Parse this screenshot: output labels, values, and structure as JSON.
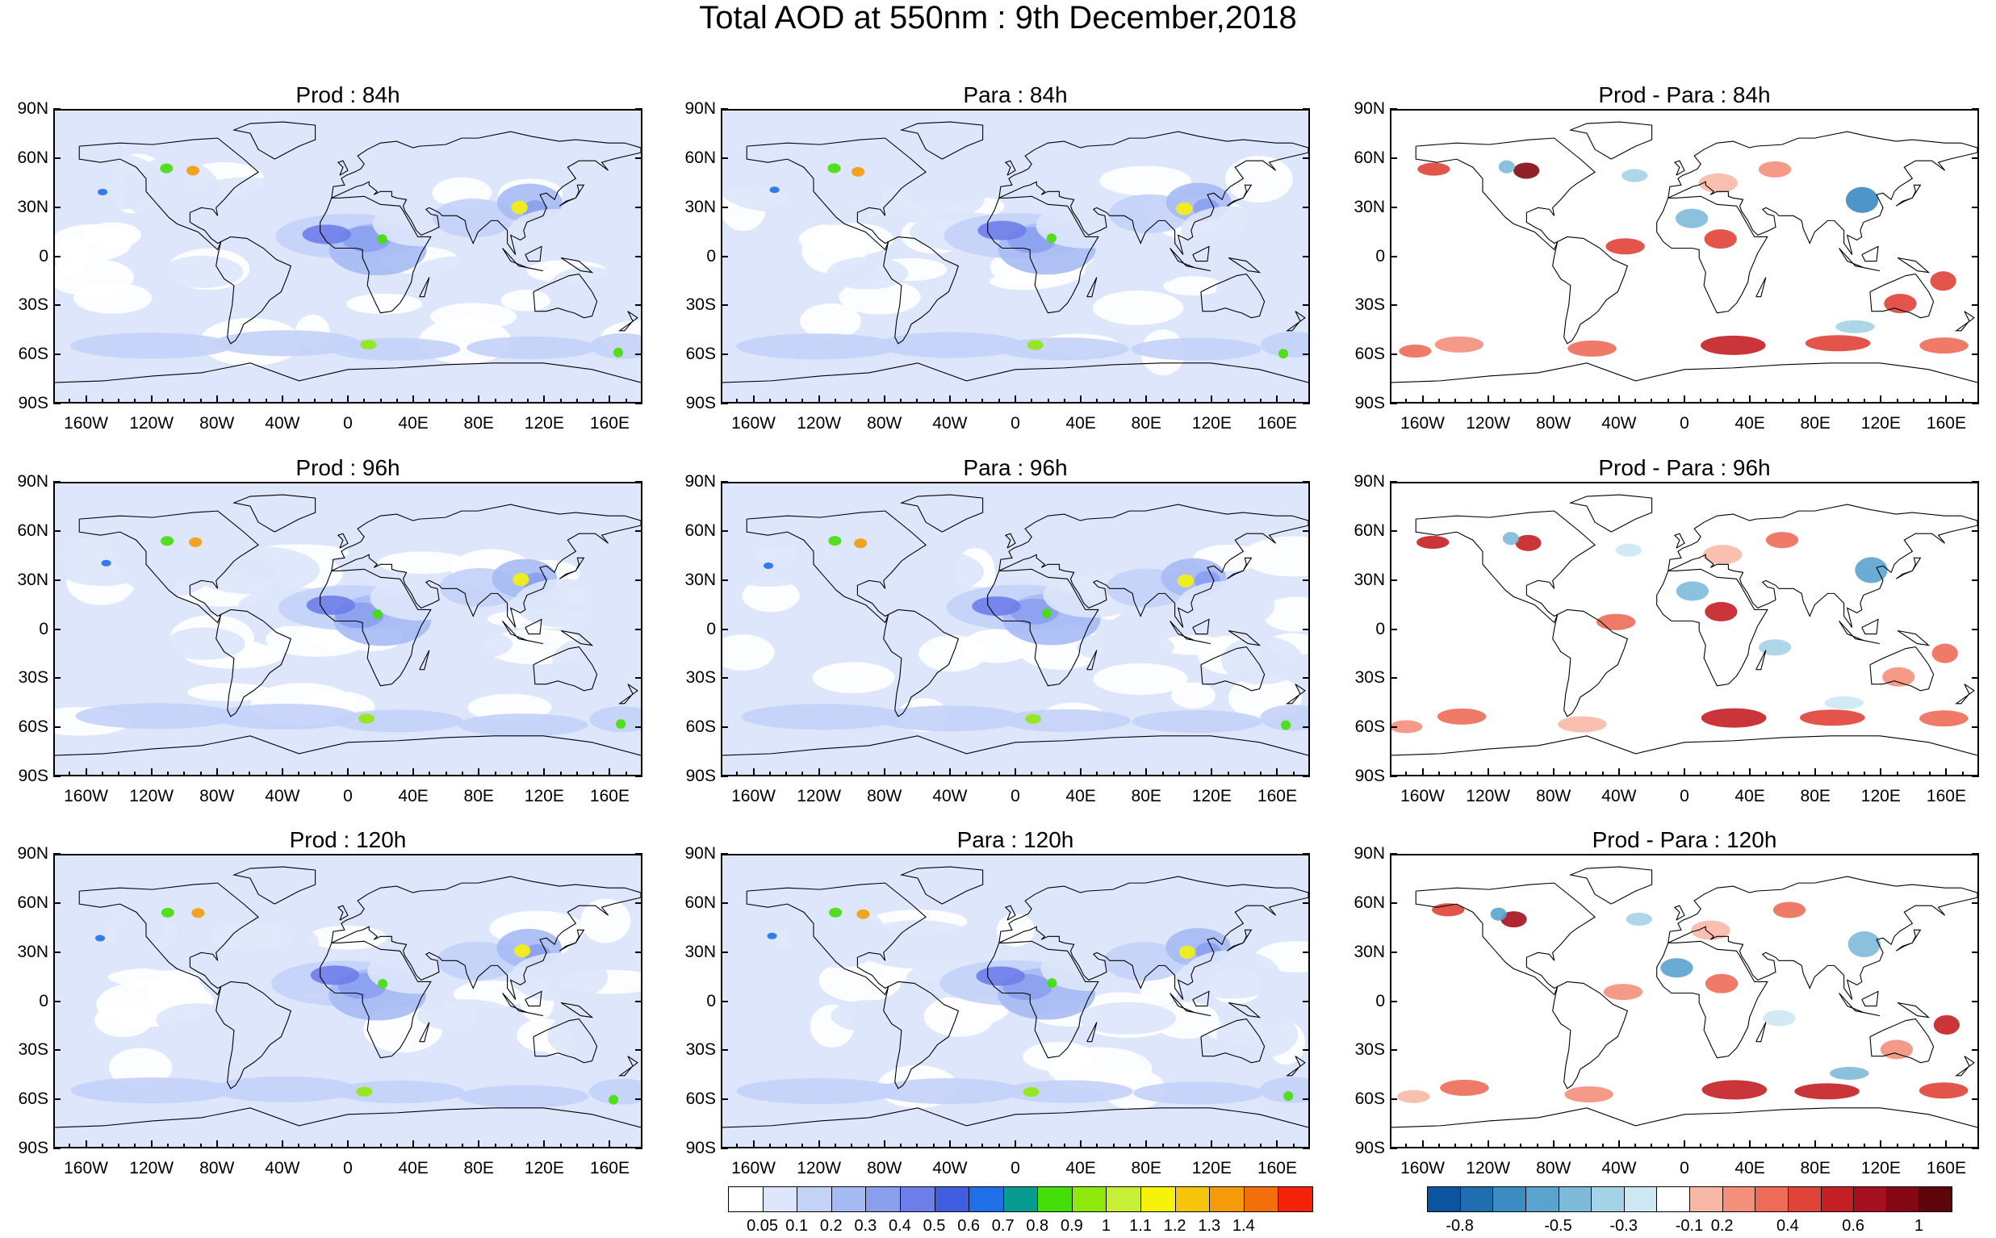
{
  "title": "Total AOD at 550nm : 9th December,2018",
  "lat_labels": [
    "90N",
    "60N",
    "30N",
    "0",
    "30S",
    "60S",
    "90S"
  ],
  "lon_labels": [
    "160W",
    "120W",
    "80W",
    "40W",
    "0",
    "40E",
    "80E",
    "120E",
    "160E"
  ],
  "panels": [
    {
      "title": "Prod : 84h",
      "kind": "aod"
    },
    {
      "title": "Para : 84h",
      "kind": "aod"
    },
    {
      "title": "Prod - Para : 84h",
      "kind": "diff"
    },
    {
      "title": "Prod : 96h",
      "kind": "aod"
    },
    {
      "title": "Para : 96h",
      "kind": "aod"
    },
    {
      "title": "Prod - Para : 96h",
      "kind": "diff"
    },
    {
      "title": "Prod : 120h",
      "kind": "aod"
    },
    {
      "title": "Para : 120h",
      "kind": "aod"
    },
    {
      "title": "Prod - Para : 120h",
      "kind": "diff"
    }
  ],
  "aod_colorbar": {
    "colors": [
      "#ffffff",
      "#dde6fb",
      "#c4d2f8",
      "#a6baf4",
      "#8aa0ef",
      "#6d7de9",
      "#3f5ee0",
      "#1e6fe8",
      "#079b92",
      "#44de08",
      "#8fe80c",
      "#c7ef36",
      "#f6f20a",
      "#f5c40b",
      "#f59b0a",
      "#f36f0a",
      "#f4220b"
    ],
    "labels": [
      "0.05",
      "0.1",
      "0.2",
      "0.3",
      "0.4",
      "0.5",
      "0.6",
      "0.7",
      "0.8",
      "0.9",
      "1",
      "1.1",
      "1.2",
      "1.3",
      "1.4"
    ]
  },
  "diff_colorbar": {
    "colors": [
      "#0b55a0",
      "#1f6fb0",
      "#3a8cc2",
      "#5aa3cf",
      "#7fbad9",
      "#a4d2e6",
      "#cde8f3",
      "#ffffff",
      "#f8b8a6",
      "#f48f7b",
      "#ee6b58",
      "#e04337",
      "#c41f25",
      "#a60f1d",
      "#840813",
      "#5e050b"
    ],
    "labels": [
      "-0.8",
      "-0.5",
      "-0.3",
      "-0.1",
      "0.2",
      "0.4",
      "0.6",
      "1"
    ]
  }
}
